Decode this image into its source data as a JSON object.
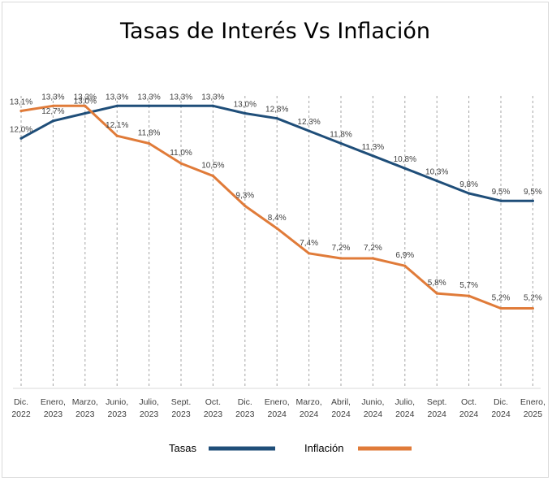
{
  "chart_data": {
    "type": "line",
    "title": "Tasas de Interés Vs Inflación",
    "xlabel": "",
    "ylabel": "",
    "categories": [
      [
        "Dic.",
        "2022"
      ],
      [
        "Enero,",
        "2023"
      ],
      [
        "Marzo,",
        "2023"
      ],
      [
        "Junio,",
        "2023"
      ],
      [
        "Julio,",
        "2023"
      ],
      [
        "Sept.",
        "2023"
      ],
      [
        "Oct.",
        "2023"
      ],
      [
        "Dic.",
        "2023"
      ],
      [
        "Enero,",
        "2024"
      ],
      [
        "Marzo,",
        "2024"
      ],
      [
        "Abril,",
        "2024"
      ],
      [
        "Junio,",
        "2024"
      ],
      [
        "Julio,",
        "2024"
      ],
      [
        "Sept.",
        "2024"
      ],
      [
        "Oct.",
        "2024"
      ],
      [
        "Dic.",
        "2024"
      ],
      [
        "Enero,",
        "2025"
      ]
    ],
    "series": [
      {
        "name": "Tasas",
        "color": "#1f4e79",
        "values": [
          12.0,
          12.7,
          13.0,
          13.3,
          13.3,
          13.3,
          13.3,
          13.0,
          12.8,
          12.3,
          11.8,
          11.3,
          10.8,
          10.3,
          9.8,
          9.5,
          9.5
        ],
        "labels": [
          "12,0%",
          "12,7%",
          "13,0%",
          "13,3%",
          "13,3%",
          "13,3%",
          "13,3%",
          "13,0%",
          "12,8%",
          "12,3%",
          "11,8%",
          "11,3%",
          "10,8%",
          "10,3%",
          "9,8%",
          "9,5%",
          "9,5%"
        ]
      },
      {
        "name": "Inflación",
        "color": "#e07b39",
        "values": [
          13.1,
          13.3,
          13.3,
          12.1,
          11.8,
          11.0,
          10.5,
          9.3,
          8.4,
          7.4,
          7.2,
          7.2,
          6.9,
          5.8,
          5.7,
          5.2,
          5.2
        ],
        "labels": [
          "13,1%",
          "13,3%",
          "13,3%",
          "12,1%",
          "11,8%",
          "11,0%",
          "10,5%",
          "9,3%",
          "8,4%",
          "7,4%",
          "7,2%",
          "7,2%",
          "6,9%",
          "5,8%",
          "5,7%",
          "5,2%",
          "5,2%"
        ]
      }
    ],
    "ylim": [
      2.0,
      15.0
    ],
    "grid": "vertical-dashed",
    "legend": "bottom"
  }
}
